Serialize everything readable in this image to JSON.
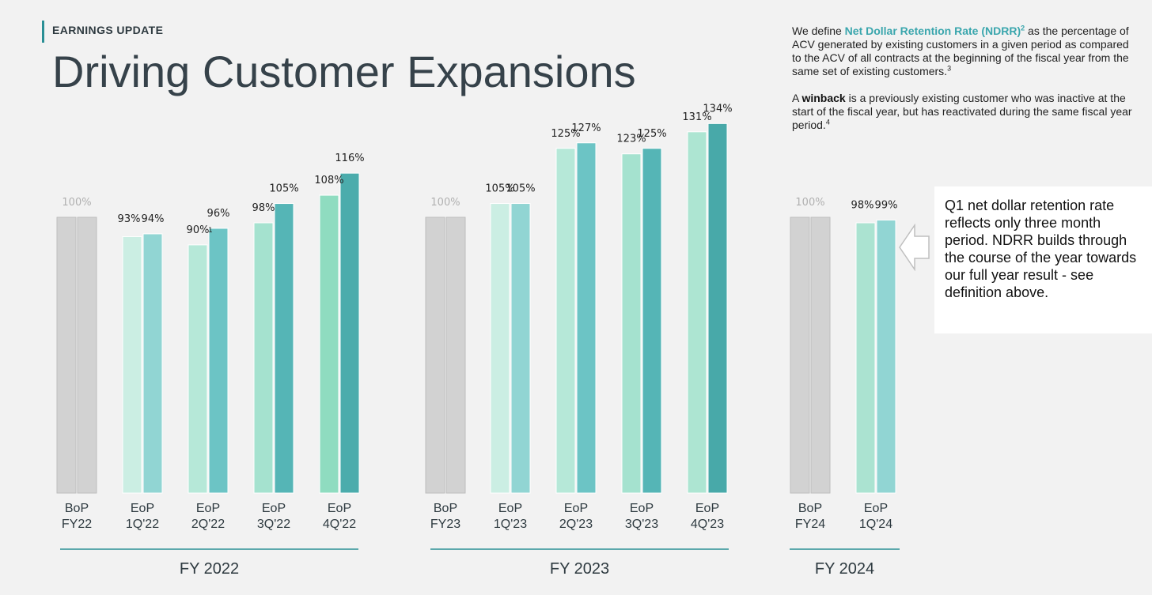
{
  "header": {
    "eyebrow": "EARNINGS UPDATE",
    "title": "Driving Customer Expansions"
  },
  "definitions": {
    "p1_prefix": "We define ",
    "p1_term": "Net Dollar Retention Rate (NDRR)",
    "p1_sup": "2",
    "p1_text": " as the percentage of ACV generated by existing customers in a given period as compared to the ACV of all contracts at the beginning of the fiscal year from the same set of existing customers.",
    "p1_sup_end": "3",
    "p2_prefix": "A ",
    "p2_term": "winback",
    "p2_text": " is a previously existing customer who was inactive at the start of the fiscal year, but has reactivated during the same fiscal year period.",
    "p2_sup_end": "4"
  },
  "note": {
    "text": "Q1 net dollar retention rate reflects only three month period. NDRR builds through the course of the year towards our full year result - see definition above."
  },
  "colors": {
    "grey_bar": "#d2d2d2",
    "grey_bar_edge": "#bdbdbd",
    "grey_label": "#b0b0b0",
    "axis_rule": "#2a8f95",
    "label_text": "#222222"
  },
  "chart_data": {
    "type": "bar",
    "ylim": [
      0,
      140
    ],
    "groups": [
      {
        "name": "FY 2022",
        "categories": [
          {
            "label": [
              "BoP",
              "FY22"
            ],
            "baseline": true,
            "values": [
              100,
              100
            ],
            "labels": [
              "100%"
            ]
          },
          {
            "label": [
              "EoP",
              "1Q'22"
            ],
            "values": [
              93,
              94
            ],
            "labels": [
              "93%",
              "94%"
            ],
            "colors": [
              "#cbeee3",
              "#91d5d3"
            ]
          },
          {
            "label": [
              "EoP",
              "2Q'22"
            ],
            "values": [
              90,
              96
            ],
            "labels": [
              "90%",
              "96%"
            ],
            "marker": "1",
            "colors": [
              "#b6e8d8",
              "#6cc4c5"
            ]
          },
          {
            "label": [
              "EoP",
              "3Q'22"
            ],
            "values": [
              98,
              105
            ],
            "labels": [
              "98%",
              "105%"
            ],
            "colors": [
              "#a5e2cf",
              "#55b5b6"
            ]
          },
          {
            "label": [
              "EoP",
              "4Q'22"
            ],
            "values": [
              108,
              116
            ],
            "labels": [
              "108%",
              "116%"
            ],
            "colors": [
              "#8fdcc0",
              "#4bacac"
            ]
          }
        ]
      },
      {
        "name": "FY 2023",
        "categories": [
          {
            "label": [
              "BoP",
              "FY23"
            ],
            "baseline": true,
            "values": [
              100,
              100
            ],
            "labels": [
              "100%"
            ]
          },
          {
            "label": [
              "EoP",
              "1Q'23"
            ],
            "values": [
              105,
              105
            ],
            "labels": [
              "105%",
              "105%"
            ],
            "colors": [
              "#cbeee3",
              "#91d5d3"
            ]
          },
          {
            "label": [
              "EoP",
              "2Q'23"
            ],
            "values": [
              125,
              127
            ],
            "labels": [
              "125%",
              "127%"
            ],
            "colors": [
              "#b6e8d8",
              "#6cc4c5"
            ]
          },
          {
            "label": [
              "EoP",
              "3Q'23"
            ],
            "values": [
              123,
              125
            ],
            "labels": [
              "123%",
              "125%"
            ],
            "colors": [
              "#a5e2cf",
              "#55b5b6"
            ]
          },
          {
            "label": [
              "EoP",
              "4Q'23"
            ],
            "values": [
              131,
              134
            ],
            "labels": [
              "131%",
              "134%"
            ],
            "colors": [
              "#ade5d2",
              "#48a9a9"
            ]
          }
        ]
      },
      {
        "name": "FY 2024",
        "categories": [
          {
            "label": [
              "BoP",
              "FY24"
            ],
            "baseline": true,
            "values": [
              100,
              100
            ],
            "labels": [
              "100%"
            ]
          },
          {
            "label": [
              "EoP",
              "1Q'24"
            ],
            "values": [
              98,
              99
            ],
            "labels": [
              "98%",
              "99%"
            ],
            "colors": [
              "#abe3d1",
              "#91d5d3"
            ]
          }
        ]
      }
    ]
  }
}
